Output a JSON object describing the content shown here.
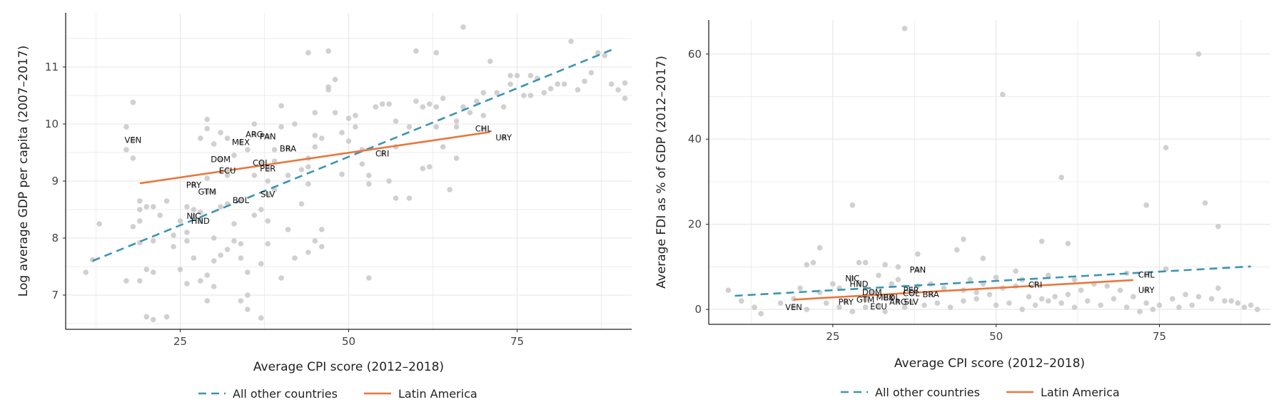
{
  "colors": {
    "others": "#3a95b5",
    "latam": "#e8773d",
    "points": "#c8c8c8",
    "grid": "#e6e6e6",
    "axis": "#222222"
  },
  "legend": {
    "others_label": "All other countries",
    "latam_label": "Latin America"
  },
  "chart_data": [
    {
      "type": "scatter",
      "xlabel": "Average CPI score (2012–2018)",
      "ylabel": "Log average GDP per capita (2007–2017)",
      "xlim": [
        8,
        92
      ],
      "ylim": [
        6.4,
        11.95
      ],
      "xticks": [
        25,
        50,
        75
      ],
      "yticks": [
        7,
        8,
        9,
        10,
        11
      ],
      "fit_lines": [
        {
          "name": "All other countries",
          "style": "dashed",
          "x": [
            12,
            89
          ],
          "y": [
            7.6,
            11.3
          ]
        },
        {
          "name": "Latin America",
          "style": "solid",
          "x": [
            19,
            71
          ],
          "y": [
            8.96,
            9.86
          ]
        }
      ],
      "countries": [
        {
          "code": "VEN",
          "x": 18,
          "y": 9.72
        },
        {
          "code": "ARG",
          "x": 36,
          "y": 9.82
        },
        {
          "code": "PAN",
          "x": 38,
          "y": 9.78
        },
        {
          "code": "MEX",
          "x": 34,
          "y": 9.68
        },
        {
          "code": "BRA",
          "x": 41,
          "y": 9.57
        },
        {
          "code": "DOM",
          "x": 31,
          "y": 9.38
        },
        {
          "code": "COL",
          "x": 37,
          "y": 9.32
        },
        {
          "code": "PER",
          "x": 38,
          "y": 9.22
        },
        {
          "code": "ECU",
          "x": 32,
          "y": 9.18
        },
        {
          "code": "CRI",
          "x": 55,
          "y": 9.48
        },
        {
          "code": "CHL",
          "x": 70,
          "y": 9.92
        },
        {
          "code": "URY",
          "x": 73,
          "y": 9.76
        },
        {
          "code": "PRY",
          "x": 27,
          "y": 8.93
        },
        {
          "code": "GTM",
          "x": 29,
          "y": 8.81
        },
        {
          "code": "SLV",
          "x": 38,
          "y": 8.77
        },
        {
          "code": "BOL",
          "x": 34,
          "y": 8.66
        },
        {
          "code": "NIC",
          "x": 27,
          "y": 8.39
        },
        {
          "code": "HND",
          "x": 28,
          "y": 8.3
        }
      ],
      "others": [
        [
          13,
          8.25
        ],
        [
          12,
          7.62
        ],
        [
          11,
          7.4
        ],
        [
          17,
          9.95
        ],
        [
          18,
          10.38
        ],
        [
          17,
          9.55
        ],
        [
          18,
          9.4
        ],
        [
          19,
          8.65
        ],
        [
          19,
          8.5
        ],
        [
          20,
          8.55
        ],
        [
          21,
          8.55
        ],
        [
          19,
          8.3
        ],
        [
          18,
          8.2
        ],
        [
          19,
          7.92
        ],
        [
          21,
          7.95
        ],
        [
          20,
          7.45
        ],
        [
          21,
          7.4
        ],
        [
          19,
          7.25
        ],
        [
          17,
          7.25
        ],
        [
          20,
          6.62
        ],
        [
          21,
          6.57
        ],
        [
          23,
          6.62
        ],
        [
          22,
          8.4
        ],
        [
          23,
          8.65
        ],
        [
          24,
          8.05
        ],
        [
          25,
          7.45
        ],
        [
          26,
          7.2
        ],
        [
          26,
          7.95
        ],
        [
          26,
          8.1
        ],
        [
          26,
          8.55
        ],
        [
          27,
          7.65
        ],
        [
          28,
          7.25
        ],
        [
          29,
          7.35
        ],
        [
          29,
          6.9
        ],
        [
          30,
          7.15
        ],
        [
          30,
          8.0
        ],
        [
          30,
          8.8
        ],
        [
          29,
          9.05
        ],
        [
          29,
          10.08
        ],
        [
          29,
          9.92
        ],
        [
          28,
          9.75
        ],
        [
          30,
          9.65
        ],
        [
          31,
          9.85
        ],
        [
          32,
          9.75
        ],
        [
          32,
          9.1
        ],
        [
          32,
          8.6
        ],
        [
          33,
          8.25
        ],
        [
          33,
          7.95
        ],
        [
          34,
          7.65
        ],
        [
          34,
          7.9
        ],
        [
          35,
          7.4
        ],
        [
          35,
          7.0
        ],
        [
          34,
          6.9
        ],
        [
          35,
          6.75
        ],
        [
          37,
          6.6
        ],
        [
          37,
          7.55
        ],
        [
          38,
          7.9
        ],
        [
          38,
          8.3
        ],
        [
          39,
          8.85
        ],
        [
          38,
          9.0
        ],
        [
          39,
          9.35
        ],
        [
          39,
          9.55
        ],
        [
          40,
          9.95
        ],
        [
          40,
          10.32
        ],
        [
          40,
          7.3
        ],
        [
          41,
          8.15
        ],
        [
          42,
          7.65
        ],
        [
          43,
          8.6
        ],
        [
          43,
          9.2
        ],
        [
          44,
          9.4
        ],
        [
          45,
          9.8
        ],
        [
          45,
          9.6
        ],
        [
          44,
          9.25
        ],
        [
          44,
          8.95
        ],
        [
          45,
          7.95
        ],
        [
          44,
          7.75
        ],
        [
          46,
          8.15
        ],
        [
          46,
          7.85
        ],
        [
          47,
          10.65
        ],
        [
          47,
          10.6
        ],
        [
          48,
          10.78
        ],
        [
          48,
          10.2
        ],
        [
          47,
          11.28
        ],
        [
          44,
          11.25
        ],
        [
          49,
          9.85
        ],
        [
          49,
          9.12
        ],
        [
          50,
          10.1
        ],
        [
          51,
          10.15
        ],
        [
          51,
          9.95
        ],
        [
          52,
          9.3
        ],
        [
          53,
          9.1
        ],
        [
          53,
          8.95
        ],
        [
          53,
          7.3
        ],
        [
          54,
          10.3
        ],
        [
          55,
          10.35
        ],
        [
          56,
          10.35
        ],
        [
          57,
          10.05
        ],
        [
          57,
          9.6
        ],
        [
          57,
          8.7
        ],
        [
          59,
          9.95
        ],
        [
          59,
          8.7
        ],
        [
          60,
          11.28
        ],
        [
          60,
          10.4
        ],
        [
          61,
          10.3
        ],
        [
          61,
          9.22
        ],
        [
          62,
          10.35
        ],
        [
          62,
          9.25
        ],
        [
          63,
          10.3
        ],
        [
          63,
          11.25
        ],
        [
          64,
          10.45
        ],
        [
          64,
          9.6
        ],
        [
          65,
          8.85
        ],
        [
          66,
          9.4
        ],
        [
          66,
          9.95
        ],
        [
          66,
          10.05
        ],
        [
          67,
          10.3
        ],
        [
          67,
          11.7
        ],
        [
          68,
          10.2
        ],
        [
          69,
          10.4
        ],
        [
          70,
          10.15
        ],
        [
          71,
          11.1
        ],
        [
          72,
          10.55
        ],
        [
          73,
          10.3
        ],
        [
          74,
          10.7
        ],
        [
          74,
          10.85
        ],
        [
          75,
          10.85
        ],
        [
          76,
          10.5
        ],
        [
          77,
          10.5
        ],
        [
          77,
          10.85
        ],
        [
          78,
          10.8
        ],
        [
          79,
          10.55
        ],
        [
          80,
          10.62
        ],
        [
          81,
          10.7
        ],
        [
          82,
          10.7
        ],
        [
          83,
          11.45
        ],
        [
          84,
          10.6
        ],
        [
          85,
          10.75
        ],
        [
          86,
          10.9
        ],
        [
          87,
          11.25
        ],
        [
          88,
          11.2
        ],
        [
          89,
          10.7
        ],
        [
          90,
          10.6
        ],
        [
          91,
          10.45
        ],
        [
          91,
          10.72
        ],
        [
          36,
          10.0
        ],
        [
          35,
          9.55
        ],
        [
          36,
          9.1
        ],
        [
          42,
          10.0
        ],
        [
          45,
          10.2
        ],
        [
          31,
          8.55
        ],
        [
          33,
          9.45
        ],
        [
          28,
          8.45
        ],
        [
          27,
          8.5
        ],
        [
          25,
          8.3
        ],
        [
          24,
          7.85
        ],
        [
          30,
          7.6
        ],
        [
          31,
          7.7
        ],
        [
          32,
          7.8
        ],
        [
          36,
          8.4
        ],
        [
          37,
          8.5
        ],
        [
          41,
          9.1
        ],
        [
          46,
          9.75
        ],
        [
          50,
          9.7
        ],
        [
          52,
          9.55
        ],
        [
          56,
          9.0
        ],
        [
          63,
          9.95
        ],
        [
          70,
          10.55
        ]
      ]
    },
    {
      "type": "scatter",
      "xlabel": "Average CPI score (2012–2018)",
      "ylabel": "Average FDI as % of GDP (2012–2017)",
      "xlim": [
        6,
        92
      ],
      "ylim": [
        -3.5,
        68
      ],
      "xticks": [
        25,
        50,
        75
      ],
      "yticks": [
        0,
        20,
        40,
        60
      ],
      "fit_lines": [
        {
          "name": "All other countries",
          "style": "dashed",
          "x": [
            10,
            89
          ],
          "y": [
            3.2,
            10.1
          ]
        },
        {
          "name": "Latin America",
          "style": "solid",
          "x": [
            19,
            71
          ],
          "y": [
            2.3,
            6.9
          ]
        }
      ],
      "countries": [
        {
          "code": "PAN",
          "x": 38,
          "y": 9.3
        },
        {
          "code": "NIC",
          "x": 28,
          "y": 7.3
        },
        {
          "code": "HND",
          "x": 29,
          "y": 6.0
        },
        {
          "code": "CHL",
          "x": 73,
          "y": 8.1
        },
        {
          "code": "CRI",
          "x": 56,
          "y": 5.8
        },
        {
          "code": "URY",
          "x": 73,
          "y": 4.5
        },
        {
          "code": "DOM",
          "x": 31,
          "y": 4.0
        },
        {
          "code": "PER",
          "x": 37,
          "y": 4.5
        },
        {
          "code": "COL",
          "x": 37,
          "y": 3.8
        },
        {
          "code": "BRA",
          "x": 40,
          "y": 3.5
        },
        {
          "code": "GTM",
          "x": 30,
          "y": 2.3
        },
        {
          "code": "MEX",
          "x": 33,
          "y": 2.8
        },
        {
          "code": "BOL",
          "x": 34,
          "y": 2.8
        },
        {
          "code": "PRY",
          "x": 27,
          "y": 1.8
        },
        {
          "code": "ARG",
          "x": 35,
          "y": 1.8
        },
        {
          "code": "SLV",
          "x": 37,
          "y": 1.8
        },
        {
          "code": "VEN",
          "x": 19,
          "y": 0.5
        },
        {
          "code": "ECU",
          "x": 32,
          "y": 0.7
        }
      ],
      "others": [
        [
          36,
          66
        ],
        [
          81,
          60
        ],
        [
          51,
          50.5
        ],
        [
          76,
          38
        ],
        [
          60,
          31
        ],
        [
          73,
          24.5
        ],
        [
          82,
          25
        ],
        [
          28,
          24.5
        ],
        [
          84,
          19.5
        ],
        [
          23,
          14.5
        ],
        [
          45,
          16.5
        ],
        [
          57,
          16
        ],
        [
          61,
          15.5
        ],
        [
          21,
          10.5
        ],
        [
          22,
          11
        ],
        [
          29,
          11
        ],
        [
          30,
          11
        ],
        [
          33,
          10.5
        ],
        [
          35,
          10
        ],
        [
          38,
          13
        ],
        [
          44,
          14
        ],
        [
          48,
          12
        ],
        [
          53,
          9
        ],
        [
          76,
          9.5
        ],
        [
          20,
          5
        ],
        [
          23,
          4
        ],
        [
          25,
          6
        ],
        [
          26,
          5
        ],
        [
          30,
          5
        ],
        [
          34,
          6
        ],
        [
          38,
          5.5
        ],
        [
          40,
          6
        ],
        [
          42,
          5
        ],
        [
          45,
          4.5
        ],
        [
          47,
          4
        ],
        [
          49,
          3.5
        ],
        [
          51,
          5
        ],
        [
          53,
          5.5
        ],
        [
          55,
          3
        ],
        [
          57,
          2.5
        ],
        [
          59,
          3
        ],
        [
          61,
          3.5
        ],
        [
          63,
          4.5
        ],
        [
          65,
          6
        ],
        [
          67,
          5.5
        ],
        [
          69,
          4.5
        ],
        [
          71,
          3
        ],
        [
          73,
          1.5
        ],
        [
          75,
          1
        ],
        [
          77,
          2.5
        ],
        [
          79,
          3.5
        ],
        [
          81,
          3
        ],
        [
          83,
          2.5
        ],
        [
          85,
          2
        ],
        [
          87,
          1.5
        ],
        [
          89,
          1
        ],
        [
          9,
          4.5
        ],
        [
          11,
          2
        ],
        [
          13,
          0.5
        ],
        [
          14,
          -1
        ],
        [
          17,
          1.5
        ],
        [
          19,
          2.5
        ],
        [
          21,
          0
        ],
        [
          24,
          1.5
        ],
        [
          26,
          0.5
        ],
        [
          28,
          -0.5
        ],
        [
          30,
          0.5
        ],
        [
          33,
          -0.5
        ],
        [
          36,
          0.5
        ],
        [
          39,
          1
        ],
        [
          41,
          1.5
        ],
        [
          43,
          0.5
        ],
        [
          45,
          2
        ],
        [
          47,
          2.5
        ],
        [
          50,
          1
        ],
        [
          52,
          1.5
        ],
        [
          54,
          0
        ],
        [
          56,
          1
        ],
        [
          58,
          2
        ],
        [
          60,
          1.5
        ],
        [
          62,
          0.5
        ],
        [
          64,
          2
        ],
        [
          66,
          1
        ],
        [
          68,
          2.5
        ],
        [
          70,
          0.5
        ],
        [
          72,
          -0.5
        ],
        [
          74,
          0
        ],
        [
          78,
          0.5
        ],
        [
          80,
          1
        ],
        [
          84,
          5
        ],
        [
          86,
          2
        ],
        [
          88,
          0.5
        ],
        [
          90,
          0
        ],
        [
          35,
          7
        ],
        [
          32,
          8
        ],
        [
          46,
          7
        ],
        [
          48,
          6
        ],
        [
          50,
          7.5
        ],
        [
          54,
          7
        ],
        [
          58,
          8
        ],
        [
          62,
          7
        ],
        [
          70,
          8.5
        ]
      ]
    }
  ]
}
